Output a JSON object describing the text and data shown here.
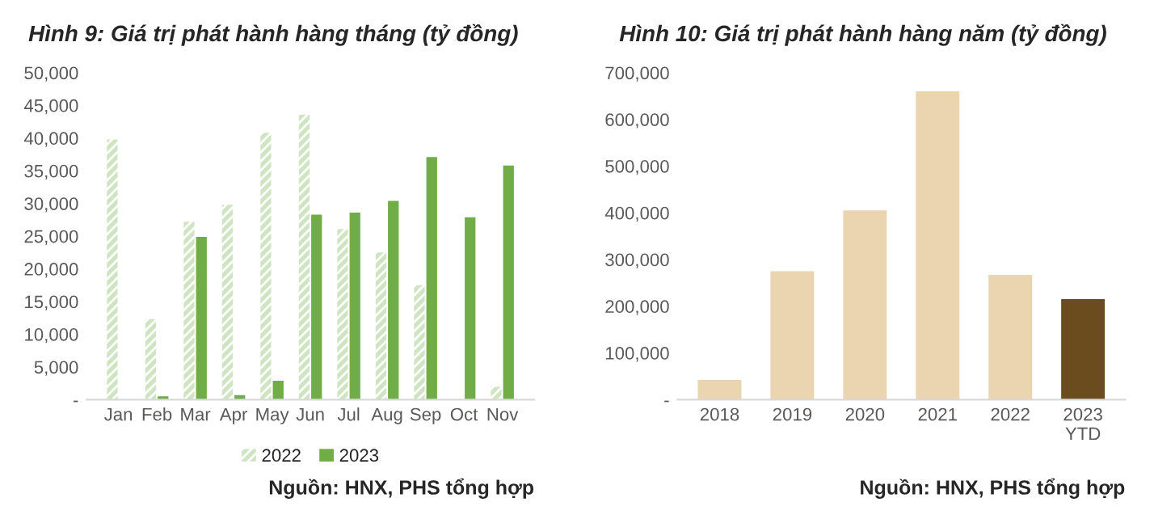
{
  "chart_data": [
    {
      "type": "bar",
      "title": "Hình 9: Giá trị phát hành hàng tháng (tỷ đồng)",
      "categories": [
        "Jan",
        "Feb",
        "Mar",
        "Apr",
        "May",
        "Jun",
        "Jul",
        "Aug",
        "Sep",
        "Oct",
        "Nov"
      ],
      "series": [
        {
          "name": "2022",
          "color": "#cfe5c2",
          "values": [
            39800,
            12300,
            27200,
            29800,
            40800,
            43600,
            26100,
            22500,
            17500,
            null,
            2000
          ]
        },
        {
          "name": "2023",
          "color": "#70ad47",
          "values": [
            null,
            500,
            24900,
            700,
            2900,
            28300,
            28600,
            30400,
            37100,
            27900,
            35800
          ]
        }
      ],
      "ylim": [
        0,
        50000
      ],
      "yticks": [
        {
          "value": 0,
          "label": "-"
        },
        {
          "value": 5000,
          "label": "5,000"
        },
        {
          "value": 10000,
          "label": "10,000"
        },
        {
          "value": 15000,
          "label": "15,000"
        },
        {
          "value": 20000,
          "label": "20,000"
        },
        {
          "value": 25000,
          "label": "25,000"
        },
        {
          "value": 30000,
          "label": "30,000"
        },
        {
          "value": 35000,
          "label": "35,000"
        },
        {
          "value": 40000,
          "label": "40,000"
        },
        {
          "value": 45000,
          "label": "45,000"
        },
        {
          "value": 50000,
          "label": "50,000"
        }
      ],
      "grid": false,
      "legend": "bottom",
      "annotations": [
        "Nguồn: HNX, PHS tổng hợp"
      ]
    },
    {
      "type": "bar",
      "title": "Hình 10: Giá trị phát hành hàng năm (tỷ đồng)",
      "categories": [
        "2018",
        "2019",
        "2020",
        "2021",
        "2022",
        "2023\nYTD"
      ],
      "values": [
        42000,
        275000,
        405000,
        660000,
        267000,
        215000
      ],
      "colors": [
        "#ead5b0",
        "#ead5b0",
        "#ead5b0",
        "#ead5b0",
        "#ead5b0",
        "#6b4c1e"
      ],
      "ylim": [
        0,
        700000
      ],
      "yticks": [
        {
          "value": 0,
          "label": "-"
        },
        {
          "value": 100000,
          "label": "100,000"
        },
        {
          "value": 200000,
          "label": "200,000"
        },
        {
          "value": 300000,
          "label": "300,000"
        },
        {
          "value": 400000,
          "label": "400,000"
        },
        {
          "value": 500000,
          "label": "500,000"
        },
        {
          "value": 600000,
          "label": "600,000"
        },
        {
          "value": 700000,
          "label": "700,000"
        }
      ],
      "grid": false,
      "annotations": [
        "Nguồn: HNX, PHS tổng hợp"
      ]
    }
  ]
}
